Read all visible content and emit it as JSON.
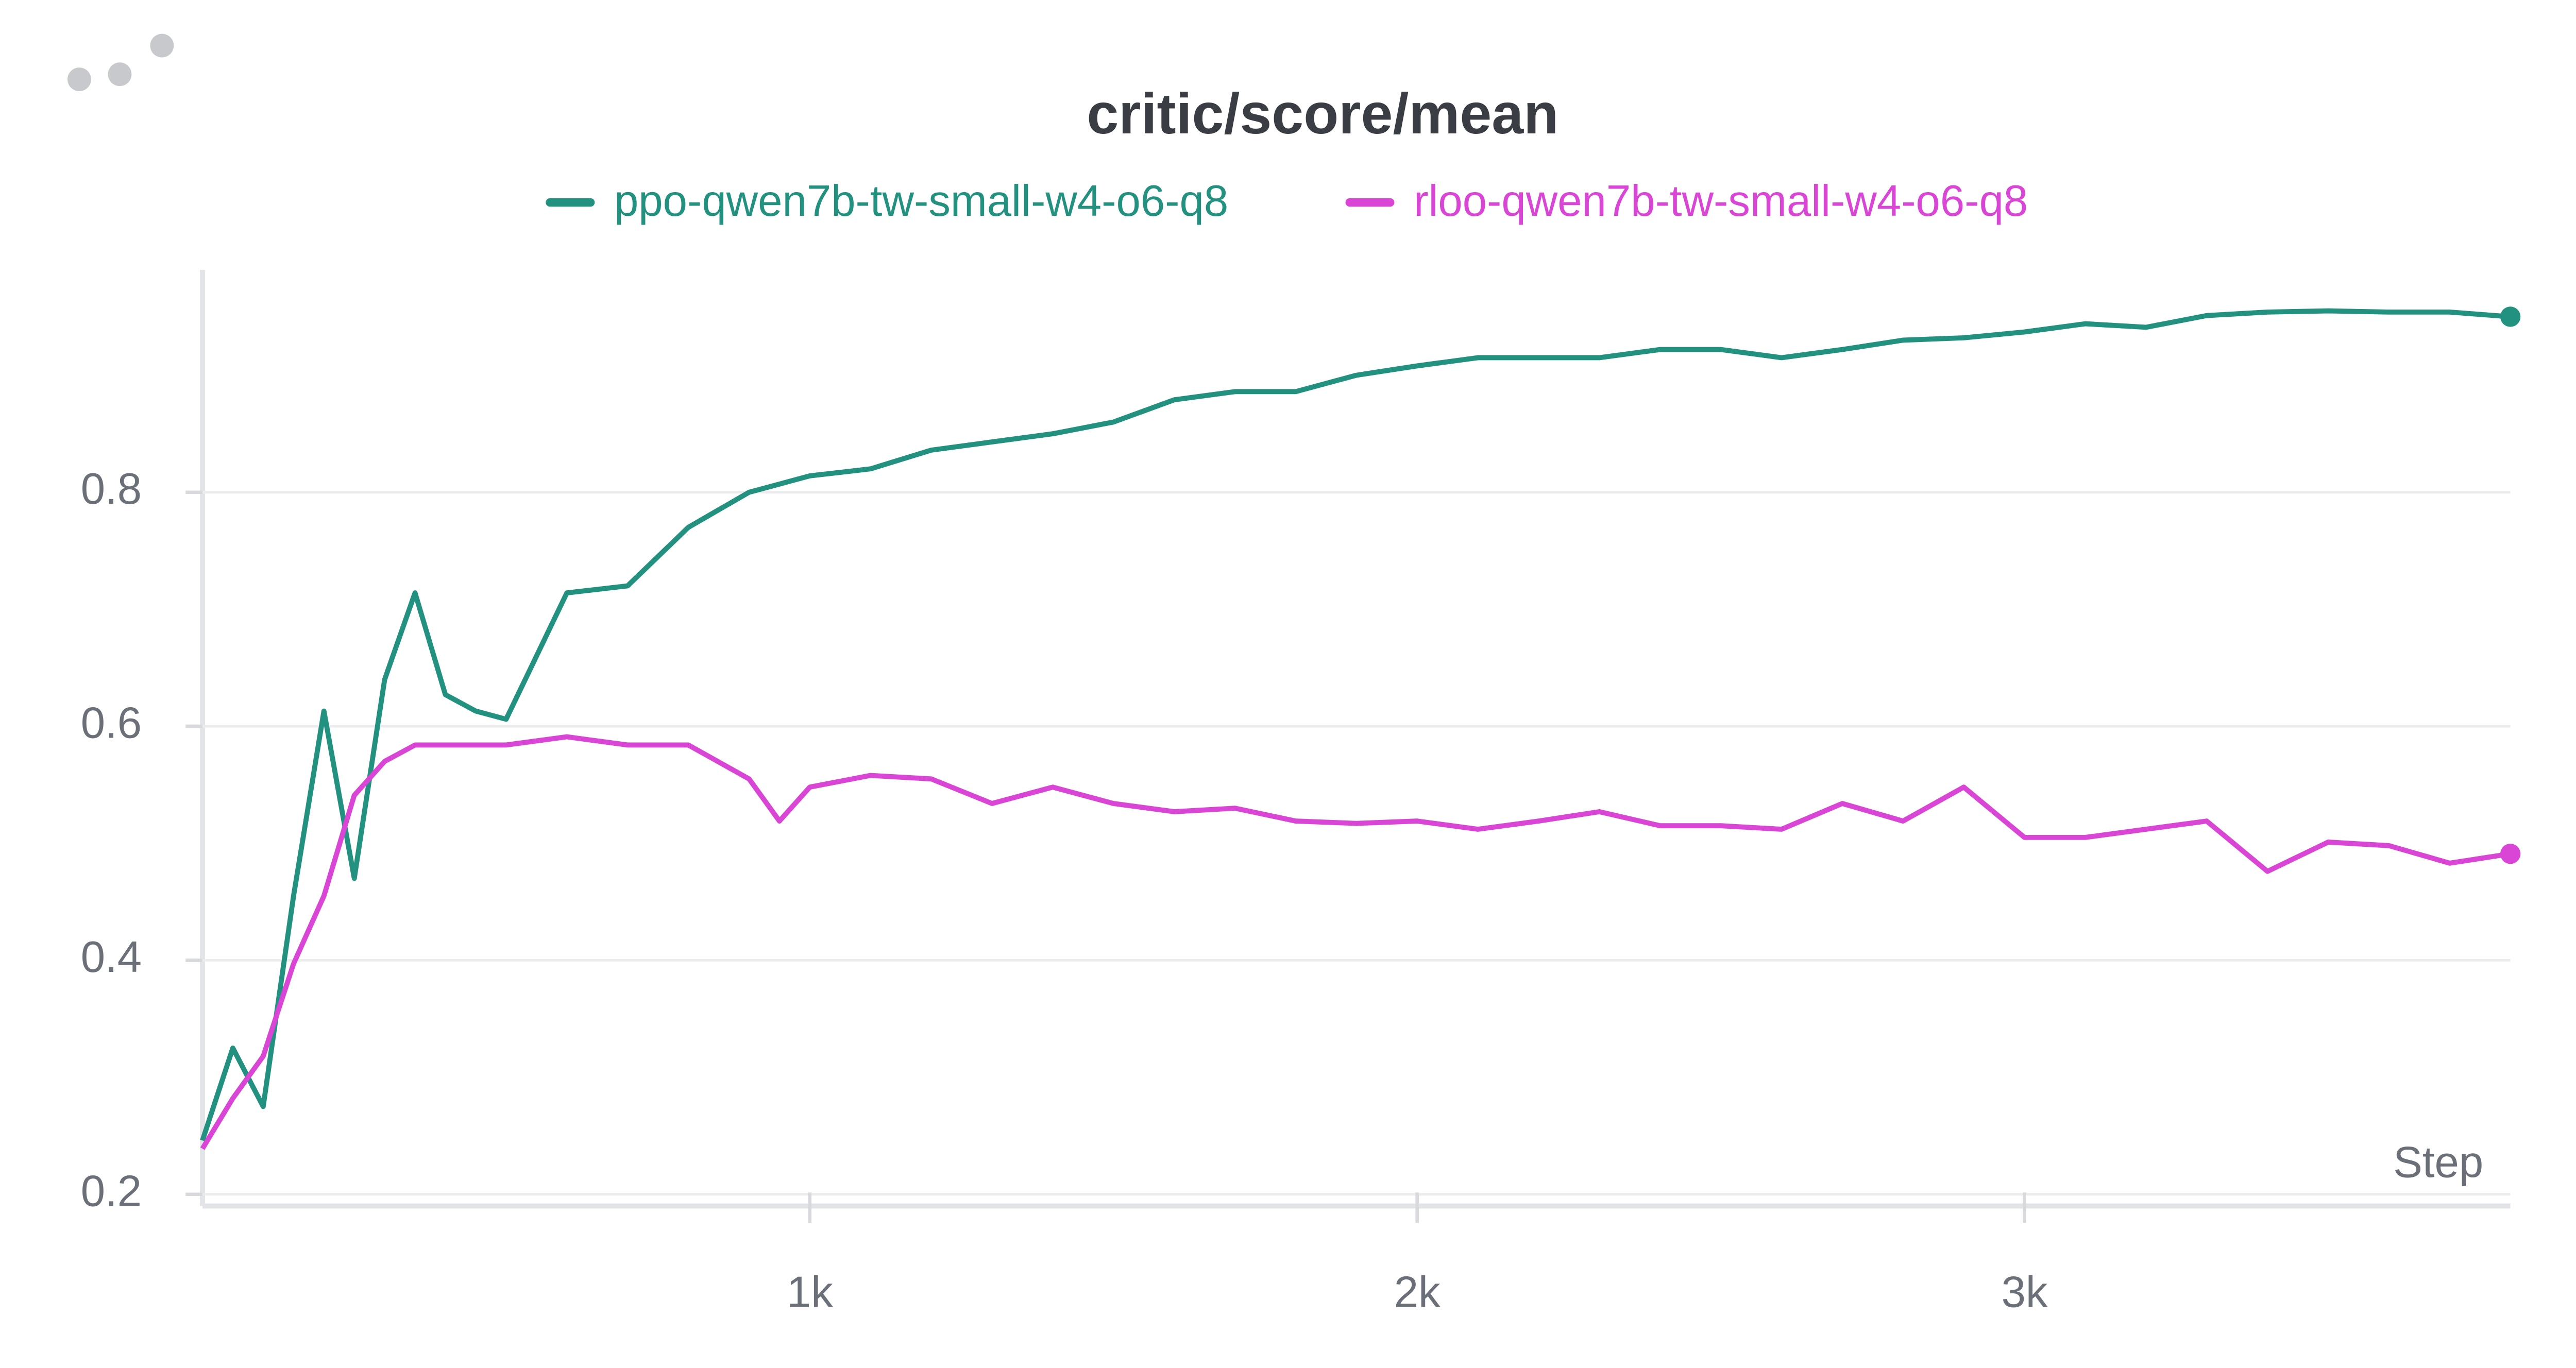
{
  "chart_data": {
    "type": "line",
    "title": "critic/score/mean",
    "x_label": "Step",
    "x": [
      0,
      50,
      100,
      150,
      200,
      250,
      300,
      350,
      400,
      450,
      500,
      600,
      700,
      800,
      900,
      950,
      1000,
      1100,
      1200,
      1300,
      1400,
      1500,
      1600,
      1700,
      1800,
      1900,
      2000,
      2100,
      2200,
      2300,
      2400,
      2500,
      2600,
      2700,
      2800,
      2900,
      3000,
      3100,
      3200,
      3300,
      3400,
      3500,
      3600,
      3700,
      3800
    ],
    "series": [
      {
        "name": "ppo-qwen7b-tw-small-w4-o6-q8",
        "color": "#22917f",
        "values": [
          0.246,
          0.325,
          0.275,
          0.455,
          0.613,
          0.47,
          0.64,
          0.714,
          0.627,
          0.613,
          0.606,
          0.714,
          0.72,
          0.77,
          0.8,
          0.807,
          0.814,
          0.82,
          0.836,
          0.843,
          0.85,
          0.86,
          0.879,
          0.886,
          0.886,
          0.9,
          0.908,
          0.915,
          0.915,
          0.915,
          0.922,
          0.922,
          0.915,
          0.922,
          0.93,
          0.932,
          0.937,
          0.944,
          0.941,
          0.951,
          0.954,
          0.955,
          0.954,
          0.954,
          0.95
        ]
      },
      {
        "name": "rloo-qwen7b-tw-small-w4-o6-q8",
        "color": "#d946d6",
        "values": [
          0.239,
          0.282,
          0.318,
          0.397,
          0.455,
          0.541,
          0.57,
          0.584,
          0.584,
          0.584,
          0.584,
          0.591,
          0.584,
          0.584,
          0.555,
          0.519,
          0.548,
          0.558,
          0.555,
          0.534,
          0.548,
          0.534,
          0.527,
          0.53,
          0.519,
          0.517,
          0.519,
          0.512,
          0.519,
          0.527,
          0.515,
          0.515,
          0.512,
          0.534,
          0.519,
          0.548,
          0.505,
          0.505,
          0.512,
          0.519,
          0.476,
          0.501,
          0.498,
          0.483,
          0.491
        ]
      }
    ],
    "xlim": [
      0,
      3800
    ],
    "xticks": [
      {
        "value": 1000,
        "label": "1k"
      },
      {
        "value": 2000,
        "label": "2k"
      },
      {
        "value": 3000,
        "label": "3k"
      }
    ],
    "ylim": [
      0.19,
      0.99
    ],
    "yticks": [
      0.2,
      0.4,
      0.6,
      0.8
    ],
    "grid": true
  }
}
